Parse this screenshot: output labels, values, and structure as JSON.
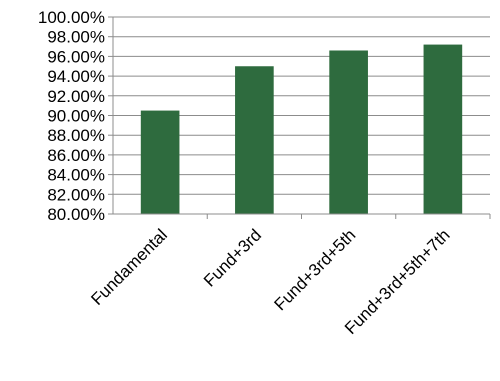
{
  "chart_data": {
    "type": "bar",
    "title": "",
    "xlabel": "",
    "ylabel": "",
    "categories": [
      "Fundamental",
      "Fund+3rd",
      "Fund+3rd+5th",
      "Fund+3rd+5th+7th"
    ],
    "values": [
      90.5,
      95.0,
      96.6,
      97.2
    ],
    "ylim": [
      80,
      100
    ],
    "yticks": [
      "80.00%",
      "82.00%",
      "84.00%",
      "86.00%",
      "88.00%",
      "90.00%",
      "92.00%",
      "94.00%",
      "96.00%",
      "98.00%",
      "100.00%"
    ],
    "grid": true,
    "legend": "none",
    "bar_color": "#2e6b3e",
    "grid_color": "#8c8c8c",
    "axis_color": "#8c8c8c"
  }
}
